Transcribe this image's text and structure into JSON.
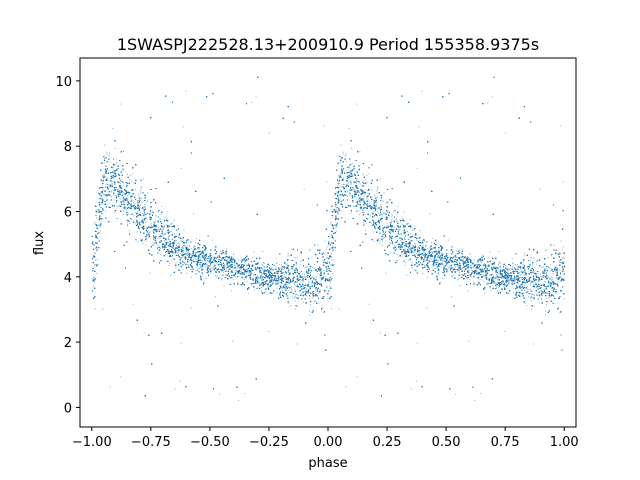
{
  "chart_data": {
    "type": "scatter",
    "title": "1SWASPJ222528.13+200910.9 Period 155358.9375s",
    "xlabel": "phase",
    "ylabel": "flux",
    "xlim": [
      -1.05,
      1.05
    ],
    "ylim": [
      -0.6,
      10.7
    ],
    "xticks": [
      -1.0,
      -0.75,
      -0.5,
      -0.25,
      0.0,
      0.25,
      0.5,
      0.75,
      1.0
    ],
    "xtick_labels": [
      "−1.00",
      "−0.75",
      "−0.50",
      "−0.25",
      "0.00",
      "0.25",
      "0.50",
      "0.75",
      "1.00"
    ],
    "yticks": [
      0,
      2,
      4,
      6,
      8,
      10
    ],
    "ytick_labels": [
      "0",
      "2",
      "4",
      "6",
      "8",
      "10"
    ],
    "grid": false,
    "point_color": "#1f77b4",
    "marker": "tiny dot",
    "phase_range": [
      -1.0,
      1.0
    ],
    "approx_points": 40000,
    "envelope_profile": {
      "phase": [
        0.0,
        0.05,
        0.1,
        0.15,
        0.2,
        0.25,
        0.3,
        0.35,
        0.4,
        0.45,
        0.5,
        0.55,
        0.6,
        0.65,
        0.7,
        0.75,
        0.8,
        0.85,
        0.9,
        0.95,
        1.0
      ],
      "flux_mean": [
        4.2,
        7.0,
        6.8,
        6.4,
        6.0,
        5.6,
        5.2,
        4.9,
        4.7,
        4.6,
        4.5,
        4.4,
        4.3,
        4.2,
        4.1,
        4.0,
        4.0,
        3.9,
        3.9,
        3.9,
        4.2
      ],
      "flux_spread": [
        1.2,
        1.0,
        1.0,
        1.0,
        0.9,
        0.9,
        0.8,
        0.7,
        0.6,
        0.6,
        0.5,
        0.5,
        0.5,
        0.5,
        0.5,
        0.5,
        0.6,
        0.8,
        0.9,
        1.0,
        1.2
      ]
    }
  }
}
